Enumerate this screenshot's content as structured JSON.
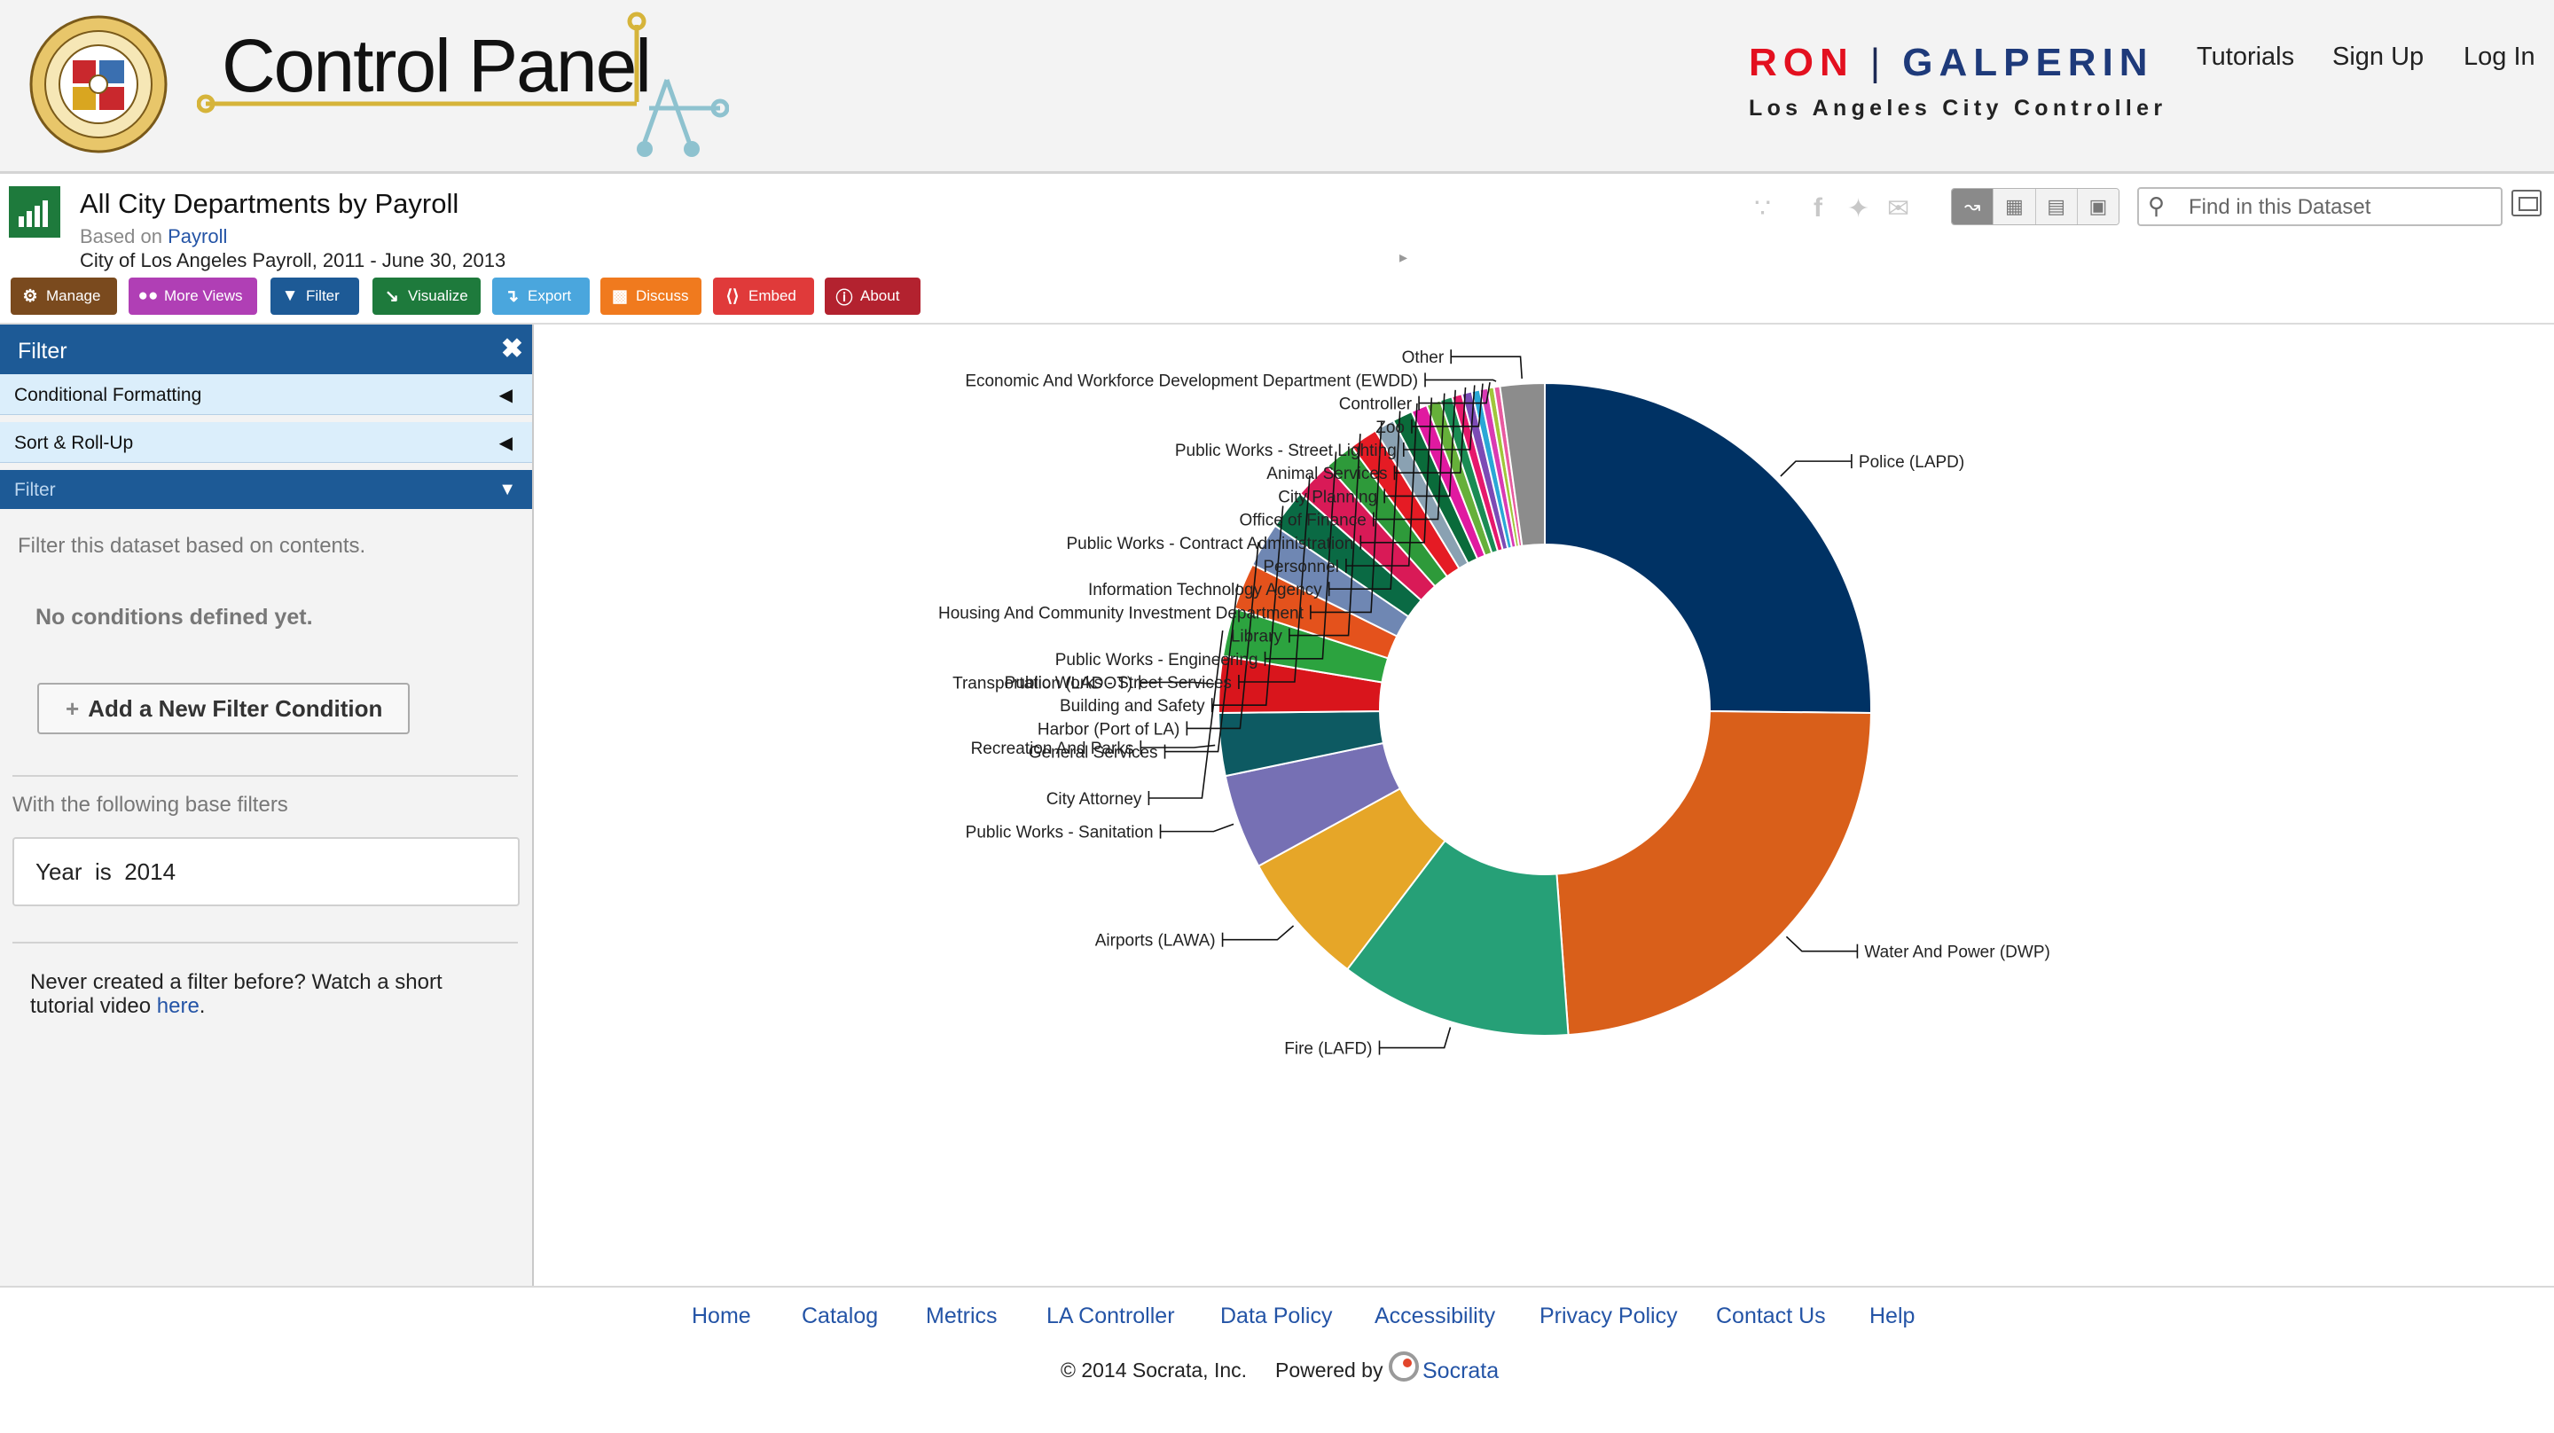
{
  "header": {
    "logo_text": "Control Panel",
    "brand_first": "RON",
    "brand_last": "GALPERIN",
    "brand_subtitle": "Los Angeles City Controller",
    "nav": [
      "Tutorials",
      "Sign Up",
      "Log In"
    ]
  },
  "dataset": {
    "title": "All City Departments by Payroll",
    "based_on_prefix": "Based on",
    "based_on_link": "Payroll",
    "subtitle": "City of Los Angeles Payroll, 2011 - June 30, 2013",
    "search_placeholder": "Find in this Dataset"
  },
  "toolbar": [
    {
      "label": "Manage",
      "color": "#7a4a1e",
      "icon": "gear-icon"
    },
    {
      "label": "More Views",
      "color": "#b03fb5",
      "icon": "glasses-icon"
    },
    {
      "label": "Filter",
      "color": "#1d5a96",
      "icon": "funnel-icon"
    },
    {
      "label": "Visualize",
      "color": "#1e7a3c",
      "icon": "chart-icon"
    },
    {
      "label": "Export",
      "color": "#4aa6dd",
      "icon": "export-icon"
    },
    {
      "label": "Discuss",
      "color": "#f07a1e",
      "icon": "speech-bubble-icon"
    },
    {
      "label": "Embed",
      "color": "#e03a3a",
      "icon": "code-icon"
    },
    {
      "label": "About",
      "color": "#b3222f",
      "icon": "info-icon"
    }
  ],
  "sidebar": {
    "title": "Filter",
    "sections": [
      "Conditional Formatting",
      "Sort & Roll-Up",
      "Filter"
    ],
    "description": "Filter this dataset based on contents.",
    "no_conditions": "No conditions defined yet.",
    "add_button": "Add a New Filter Condition",
    "base_filters_label": "With the following base filters",
    "base_filter": "Year  is  2014",
    "tip_text": "Never created a filter before? Watch a short tutorial video",
    "tip_link": "here"
  },
  "chart_data": {
    "type": "pie",
    "title": "",
    "categories": [
      "Police (LAPD)",
      "Water And Power (DWP)",
      "Fire (LAFD)",
      "Airports (LAWA)",
      "Public Works - Sanitation",
      "Recreation And Parks",
      "Transportation (LADOT)",
      "City Attorney",
      "General Services",
      "Harbor (Port of LA)",
      "Building and Safety",
      "Public Works - Street Services",
      "Public Works - Engineering",
      "Library",
      "Housing And Community Investment Department",
      "Information Technology Agency",
      "Personnel",
      "Public Works - Contract Administration",
      "Office of Finance",
      "City Planning",
      "Animal Services",
      "Public Works - Street Lighting",
      "Zoo",
      "Controller",
      "Economic And Workforce Development Department (EWDD)",
      "Other"
    ],
    "values": [
      25.2,
      23.7,
      11.5,
      6.7,
      4.7,
      3.1,
      2.8,
      2.4,
      2.3,
      2.2,
      2.0,
      1.9,
      1.5,
      1.4,
      1.0,
      1.0,
      0.8,
      0.7,
      0.6,
      0.5,
      0.5,
      0.4,
      0.4,
      0.3,
      0.3,
      2.2
    ],
    "colors": [
      "#003264",
      "#d95f1a",
      "#26a077",
      "#e6a628",
      "#7670b4",
      "#0d5a62",
      "#d9151c",
      "#2ca33f",
      "#e4521c",
      "#6f87b3",
      "#0a6a44",
      "#d91a57",
      "#2e9a3a",
      "#e51b24",
      "#8aa1b2",
      "#0a6b3a",
      "#e01aa0",
      "#66b03a",
      "#1a8c54",
      "#e6186c",
      "#7c4bb5",
      "#2aa7d6",
      "#d93ab3",
      "#a0c63a",
      "#e85aa0",
      "#8c8c8c"
    ],
    "legend": "none",
    "label_style": "leader-lines"
  },
  "footer": {
    "links": [
      "Home",
      "Catalog",
      "Metrics",
      "LA Controller",
      "Data Policy",
      "Accessibility",
      "Privacy Policy",
      "Contact Us",
      "Help"
    ],
    "copyright": "© 2014 Socrata, Inc.",
    "powered_by": "Powered by",
    "socrata": "Socrata"
  }
}
